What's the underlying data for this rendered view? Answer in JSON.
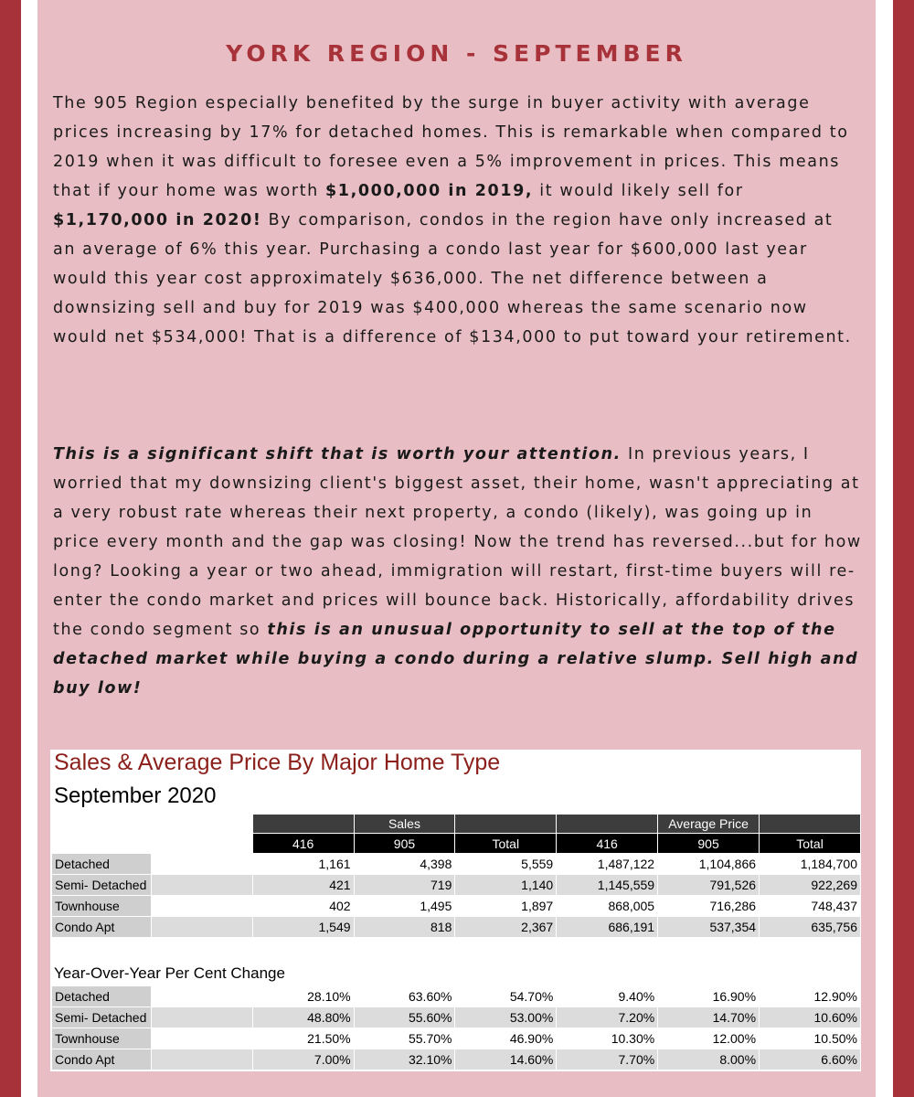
{
  "title": "YORK REGION - SEPTEMBER",
  "paragraph1": [
    {
      "t": "The 905 Region especially benefited by the surge in buyer activity with average prices increasing by 17% for detached homes. This is remarkable when compared to 2019 when it was difficult to foresee even a 5% improvement in prices. This means that if your home was worth ",
      "s": "n"
    },
    {
      "t": "$1,000,000 in 2019,",
      "s": "b"
    },
    {
      "t": " it would likely sell for ",
      "s": "n"
    },
    {
      "t": "$1,170,000 in 2020!",
      "s": "b"
    },
    {
      "t": "  By comparison, condos in the region have only increased at an average of 6% this year. Purchasing a condo last year for $600,000 last year would this year cost approximately $636,000. The net difference between a downsizing sell and buy for 2019 was $400,000 whereas the same scenario now would net $534,000! That is a difference of $134,000 to put toward your retirement.",
      "s": "n"
    }
  ],
  "paragraph2": [
    {
      "t": "This is a significant shift that is worth your attention.",
      "s": "i"
    },
    {
      "t": " In previous years, I worried that my downsizing client's biggest asset, their home, wasn't appreciating at a very robust rate whereas their next property, a condo (likely), was going up in price every month and the gap was closing! Now the trend has reversed...but for how long? Looking a year or two ahead, immigration will restart, first-time buyers will re-enter the condo market and prices will bounce back. Historically, affordability drives the condo segment so ",
      "s": "n"
    },
    {
      "t": "this is an unusual opportunity to sell at the top of the detached market while buying a condo during a relative slump. Sell high and buy low!",
      "s": "i"
    }
  ],
  "table": {
    "title": "Sales & Average Price By Major Home Type",
    "subtitle": "September 2020",
    "group_headers": [
      "Sales",
      "Average Price"
    ],
    "columns": [
      "416",
      "905",
      "Total",
      "416",
      "905",
      "Total"
    ],
    "rows": [
      {
        "label": "Detached",
        "values": [
          "1,161",
          "4,398",
          "5,559",
          "1,487,122",
          "1,104,866",
          "1,184,700"
        ]
      },
      {
        "label": "Semi- Detached",
        "values": [
          "421",
          "719",
          "1,140",
          "1,145,559",
          "791,526",
          "922,269"
        ]
      },
      {
        "label": "Townhouse",
        "values": [
          "402",
          "1,495",
          "1,897",
          "868,005",
          "716,286",
          "748,437"
        ]
      },
      {
        "label": "Condo Apt",
        "values": [
          "1,549",
          "818",
          "2,367",
          "686,191",
          "537,354",
          "635,756"
        ]
      }
    ],
    "yoy_title": "Year-Over-Year Per Cent Change",
    "yoy_rows": [
      {
        "label": "Detached",
        "values": [
          "28.10%",
          "63.60%",
          "54.70%",
          "9.40%",
          "16.90%",
          "12.90%"
        ]
      },
      {
        "label": "Semi- Detached",
        "values": [
          "48.80%",
          "55.60%",
          "53.00%",
          "7.20%",
          "14.70%",
          "10.60%"
        ]
      },
      {
        "label": "Townhouse",
        "values": [
          "21.50%",
          "55.70%",
          "46.90%",
          "10.30%",
          "12.00%",
          "10.50%"
        ]
      },
      {
        "label": "Condo Apt",
        "values": [
          "7.00%",
          "32.10%",
          "14.60%",
          "7.70%",
          "8.00%",
          "6.60%"
        ]
      }
    ]
  },
  "colors": {
    "border": "#a8323a",
    "panel": "#e8bec4",
    "title": "#a8323a",
    "table_title": "#8b1f1a"
  }
}
